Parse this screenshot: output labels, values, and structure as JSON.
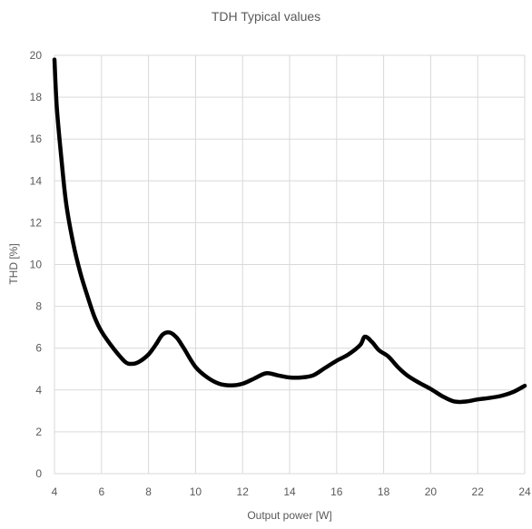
{
  "chart_data": {
    "type": "line",
    "title": "TDH Typical values",
    "xlabel": "Output power [W]",
    "ylabel": "THD [%]",
    "xlim": [
      4,
      24
    ],
    "ylim": [
      0,
      20
    ],
    "x_ticks": [
      4,
      6,
      8,
      10,
      12,
      14,
      16,
      18,
      20,
      22,
      24
    ],
    "y_ticks": [
      0,
      2,
      4,
      6,
      8,
      10,
      12,
      14,
      16,
      18,
      20
    ],
    "x_tick_labels": [
      "4",
      "6",
      "8",
      "10",
      "12",
      "14",
      "16",
      "18",
      "20",
      "22",
      "24"
    ],
    "y_tick_labels": [
      "0",
      "2",
      "4",
      "6",
      "8",
      "10",
      "12",
      "14",
      "16",
      "18",
      "20"
    ],
    "grid": true,
    "line_color": "#000000",
    "grid_color": "#d9d9d9",
    "series": [
      {
        "x": [
          4.0,
          4.1,
          4.3,
          4.5,
          4.8,
          5.1,
          5.4,
          5.7,
          6.0,
          6.5,
          7.0,
          7.3,
          7.6,
          8.0,
          8.3,
          8.6,
          8.9,
          9.2,
          9.5,
          10.0,
          10.5,
          11.0,
          11.5,
          12.0,
          12.5,
          13.0,
          13.5,
          14.0,
          14.5,
          15.0,
          15.5,
          16.0,
          16.5,
          17.0,
          17.2,
          17.5,
          17.8,
          18.2,
          18.6,
          19.0,
          19.5,
          20.0,
          20.5,
          21.0,
          21.5,
          22.0,
          22.5,
          23.0,
          23.5,
          24.0
        ],
        "y": [
          19.8,
          17.5,
          15.0,
          12.9,
          11.0,
          9.6,
          8.5,
          7.5,
          6.8,
          6.0,
          5.35,
          5.25,
          5.35,
          5.7,
          6.15,
          6.65,
          6.75,
          6.5,
          6.0,
          5.1,
          4.6,
          4.3,
          4.22,
          4.3,
          4.55,
          4.8,
          4.7,
          4.6,
          4.6,
          4.7,
          5.05,
          5.4,
          5.7,
          6.15,
          6.55,
          6.3,
          5.9,
          5.6,
          5.1,
          4.7,
          4.35,
          4.05,
          3.7,
          3.45,
          3.45,
          3.55,
          3.62,
          3.72,
          3.9,
          4.2
        ]
      }
    ]
  }
}
